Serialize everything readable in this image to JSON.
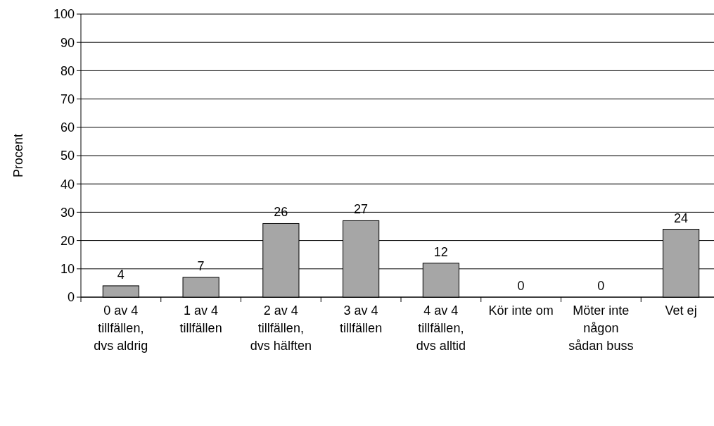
{
  "chart_data": {
    "type": "bar",
    "ylabel": "Procent",
    "categories": [
      "0 av 4 tillfällen, dvs aldrig",
      "1 av 4 tillfällen",
      "2 av 4 tillfällen, dvs hälften",
      "3 av 4 tillfällen",
      "4 av 4 tillfällen, dvs alltid",
      "Kör inte om",
      "Möter inte någon sådan buss",
      "Vet ej"
    ],
    "values": [
      4,
      7,
      26,
      27,
      12,
      0,
      0,
      24
    ],
    "color": "#a6a6a6",
    "data_labels": true,
    "ylim": [
      0,
      100
    ],
    "yticks": [
      0,
      10,
      20,
      30,
      40,
      50,
      60,
      70,
      80,
      90,
      100
    ],
    "grid": "y"
  }
}
